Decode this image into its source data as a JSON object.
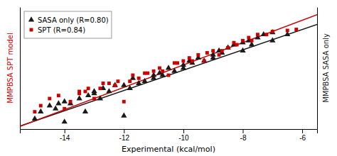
{
  "chart_data": {
    "type": "scatter",
    "xlabel": "Experimental (kcal/mol)",
    "ylabel": "MMPBSA SPT model",
    "y2label": "MMPBSA SASA only",
    "xlim": [
      -15.5,
      -5.5
    ],
    "ylim": [
      -15.5,
      -3.5
    ],
    "y2lim": [
      -15.5,
      -3.5
    ],
    "xticks": [
      -14,
      -12,
      -10,
      -8,
      -6
    ],
    "tick_labels": "x",
    "legend": "upper left",
    "series": [
      {
        "name": "SASA only (R=0.80)",
        "type": "scatter",
        "marker": "triangle",
        "color": "#1a1a1a",
        "x": [
          -15.0,
          -14.8,
          -14.5,
          -14.3,
          -14.0,
          -13.8,
          -13.5,
          -13.3,
          -13.0,
          -12.8,
          -12.5,
          -12.3,
          -12.0,
          -11.8,
          -11.5,
          -11.3,
          -11.0,
          -10.8,
          -10.5,
          -10.3,
          -10.0,
          -9.8,
          -9.5,
          -9.3,
          -9.0,
          -8.8,
          -8.5,
          -8.3,
          -8.0,
          -7.8,
          -7.5,
          -7.3,
          -7.0,
          -14.2,
          -13.2,
          -12.7,
          -11.7,
          -10.7,
          -9.7,
          -8.7,
          -7.7,
          -14.0,
          -13.0,
          -12.0,
          -11.0,
          -10.0,
          -9.0,
          -8.0,
          -7.0,
          -6.5
        ],
        "values": [
          -14.5,
          -13.8,
          -13.2,
          -13.5,
          -12.8,
          -13.0,
          -12.5,
          -13.8,
          -12.0,
          -12.5,
          -11.8,
          -11.2,
          -14.2,
          -11.5,
          -11.0,
          -10.8,
          -10.5,
          -10.0,
          -9.5,
          -9.8,
          -9.2,
          -8.8,
          -8.5,
          -8.8,
          -8.2,
          -7.8,
          -7.5,
          -7.2,
          -7.0,
          -6.8,
          -6.5,
          -6.2,
          -6.0,
          -13.0,
          -12.2,
          -11.5,
          -10.5,
          -10.2,
          -9.0,
          -8.0,
          -7.2,
          -14.8,
          -11.8,
          -11.2,
          -10.2,
          -9.5,
          -8.5,
          -7.8,
          -6.8,
          -6.2
        ]
      },
      {
        "name": "SPT (R=0.84)",
        "type": "scatter",
        "marker": "square",
        "color": "#cc0000",
        "x": [
          -15.0,
          -14.8,
          -14.5,
          -14.2,
          -13.8,
          -13.5,
          -13.3,
          -13.0,
          -12.8,
          -12.5,
          -12.3,
          -12.0,
          -11.8,
          -11.5,
          -11.3,
          -11.0,
          -10.8,
          -10.5,
          -10.3,
          -10.0,
          -9.8,
          -9.5,
          -9.3,
          -9.0,
          -8.8,
          -8.5,
          -8.3,
          -8.0,
          -7.8,
          -7.5,
          -7.0,
          -6.5,
          -6.2,
          -14.0,
          -13.2,
          -12.7,
          -11.7,
          -10.7,
          -9.7,
          -8.7,
          -7.7,
          -13.5,
          -12.2,
          -11.2,
          -10.2,
          -9.2,
          -8.2,
          -7.2
        ],
        "values": [
          -13.8,
          -13.2,
          -12.5,
          -12.2,
          -12.8,
          -12.0,
          -11.8,
          -12.5,
          -11.5,
          -11.0,
          -11.2,
          -12.8,
          -10.8,
          -10.5,
          -10.0,
          -9.8,
          -9.5,
          -10.2,
          -9.0,
          -8.8,
          -8.5,
          -8.2,
          -8.8,
          -7.8,
          -8.2,
          -7.5,
          -7.0,
          -6.8,
          -6.5,
          -6.2,
          -5.9,
          -5.8,
          -5.7,
          -13.5,
          -11.5,
          -11.0,
          -10.2,
          -9.8,
          -8.8,
          -7.8,
          -6.8,
          -11.8,
          -10.8,
          -10.0,
          -9.0,
          -8.0,
          -7.2,
          -6.2
        ]
      },
      {
        "type": "line",
        "color": "#1a1a1a",
        "x": [
          -15.5,
          -5.5
        ],
        "values": [
          -15.2,
          -5.2
        ]
      },
      {
        "type": "line",
        "color": "#cc0000",
        "x": [
          -15.5,
          -5.5
        ],
        "values": [
          -15.25,
          -4.25
        ]
      }
    ]
  }
}
